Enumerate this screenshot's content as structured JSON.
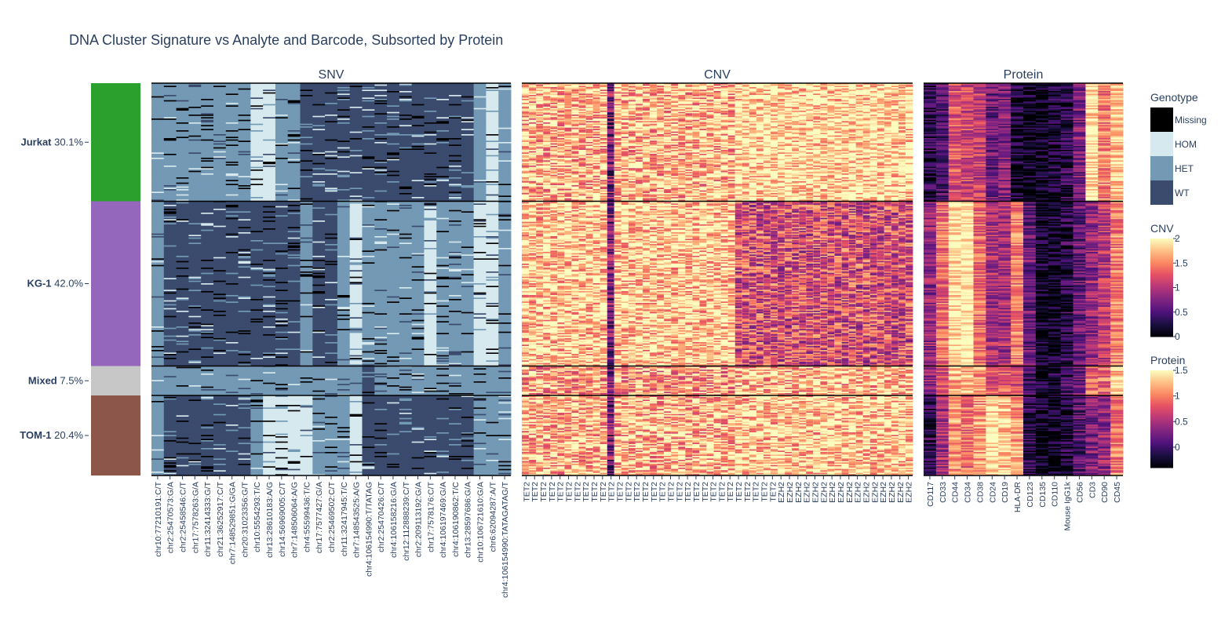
{
  "chart_data": {
    "type": "heatmap",
    "title": "DNA Cluster Signature vs Analyte and Barcode, Subsorted by Protein",
    "clusters": [
      {
        "name": "Jurkat",
        "percent": "30.1%",
        "color": "#2ca02c",
        "weight": 30.1
      },
      {
        "name": "KG-1",
        "percent": "42.0%",
        "color": "#9467bd",
        "weight": 42.0
      },
      {
        "name": "Mixed",
        "percent": "7.5%",
        "color": "#c7c7c7",
        "weight": 7.5
      },
      {
        "name": "TOM-1",
        "percent": "20.4%",
        "color": "#8c564b",
        "weight": 20.4
      }
    ],
    "panels": [
      {
        "title": "SNV",
        "colorscale": "genotype",
        "columns": [
          "chr10:77210191:C/T",
          "chr2:25470573:G/A",
          "chr2:25458546:C/T",
          "chr17:7578263:G/A",
          "chr11:32414333:G/T",
          "chr21:36252917:C/T",
          "chr7:148529851:G/GA",
          "chr20:31023356:G/T",
          "chr10:5554293:T/C",
          "chr13:28610183:A/G",
          "chr14:56969005:C/T",
          "chr7:148506064:A/G",
          "chr4:55599436:T/C",
          "chr17:7577427:G/A",
          "chr2:25469502:C/T",
          "chr11:32417945:T/C",
          "chr7:148543525:A/G",
          "chr4:106154990:T/TATAG",
          "chr2:25470426:C/T",
          "chr4:106158216:G/A",
          "chr12:112888239:C/T",
          "chr2:209113192:G/A",
          "chr17:7578176:C/T",
          "chr4:106197469:G/A",
          "chr4:106190862:T/C",
          "chr13:28597686:G/A",
          "chr10:106721610:G/A",
          "chr6:62094287:A/T",
          "chr4:106154990:TATAGATAG/T"
        ],
        "dominant_genotype_by_cluster": {
          "Jurkat": [
            "HET",
            "HET",
            "HET",
            "HET",
            "HET",
            "HET",
            "HET",
            "HET",
            "HOM",
            "HOM",
            "HET",
            "HET",
            "WT",
            "WT",
            "WT",
            "WT",
            "WT",
            "WT",
            "WT",
            "WT",
            "WT",
            "WT",
            "WT",
            "WT",
            "WT",
            "WT",
            "HET",
            "HOM",
            "HET"
          ],
          "KG-1": [
            "HET",
            "WT",
            "WT",
            "WT",
            "WT",
            "WT",
            "WT",
            "WT",
            "WT",
            "WT",
            "WT",
            "WT",
            "HET",
            "WT",
            "WT",
            "HET",
            "HOM",
            "HET",
            "HET",
            "HET",
            "HET",
            "HET",
            "HOM",
            "HET",
            "HET",
            "HET",
            "HOM",
            "HOM",
            "HET"
          ],
          "Mixed": [
            "HET",
            "HET",
            "HET",
            "HET",
            "HET",
            "HET",
            "HET",
            "HET",
            "HET",
            "HET",
            "HET",
            "HET",
            "HET",
            "HET",
            "HET",
            "HET",
            "HET",
            "WT",
            "HET",
            "HET",
            "HET",
            "HET",
            "HET",
            "HET",
            "HET",
            "HET",
            "HET",
            "HET",
            "HET"
          ],
          "TOM-1": [
            "HET",
            "WT",
            "WT",
            "WT",
            "WT",
            "WT",
            "WT",
            "WT",
            "HET",
            "HOM",
            "HOM",
            "HOM",
            "HOM",
            "HET",
            "HET",
            "HET",
            "HOM",
            "WT",
            "WT",
            "WT",
            "WT",
            "WT",
            "WT",
            "WT",
            "WT",
            "WT",
            "HET",
            "HET",
            "HET"
          ]
        }
      },
      {
        "title": "CNV",
        "colorscale": "CNV",
        "columns": [
          "TET2",
          "TET2",
          "TET2",
          "TET2",
          "TET2",
          "TET2",
          "TET2",
          "TET2",
          "TET2",
          "TET2",
          "TET2",
          "TET2",
          "TET2",
          "TET2",
          "TET2",
          "TET2",
          "TET2",
          "TET2",
          "TET2",
          "TET2",
          "TET2",
          "TET2",
          "TET2",
          "TET2",
          "TET2",
          "TET2",
          "TET2",
          "TET2",
          "TET2",
          "TET2",
          "EZH2",
          "EZH2",
          "EZH2",
          "EZH2",
          "EZH2",
          "EZH2",
          "EZH2",
          "EZH2",
          "EZH2",
          "EZH2",
          "EZH2",
          "EZH2",
          "EZH2",
          "EZH2",
          "EZH2",
          "EZH2",
          "EZH2",
          "EZH2",
          "EZH2",
          "EZH2",
          "EZH2",
          "EZH2",
          "EZH2",
          "EZH2",
          "EZH2"
        ],
        "visible_tick_labels": [
          "TET2",
          "TET2",
          "TET2",
          "TET2",
          "TET2",
          "TET2",
          "TET2",
          "TET2",
          "TET2",
          "TET2",
          "TET2",
          "TET2",
          "TET2",
          "TET2",
          "TET2",
          "TET2",
          "TET2",
          "TET2",
          "TET2",
          "TET2",
          "TET2",
          "TET2",
          "TET2",
          "TET2",
          "TET2",
          "TET2",
          "TET2",
          "TET2",
          "TET2",
          "TET2",
          "EZH2",
          "EZH2",
          "EZH2",
          "EZH2",
          "EZH2",
          "EZH2",
          "EZH2",
          "EZH2",
          "EZH2",
          "EZH2",
          "EZH2",
          "EZH2",
          "EZH2",
          "EZH2",
          "EZH2",
          "EZH2"
        ],
        "mean_by_cluster": {
          "Jurkat": {
            "TET2": 1.7,
            "EZH2": 1.9
          },
          "KG-1": {
            "TET2": 1.8,
            "EZH2": 1.2
          },
          "Mixed": {
            "TET2": 1.6,
            "EZH2": 1.7
          },
          "TOM-1": {
            "TET2": 1.7,
            "EZH2": 1.8
          }
        }
      },
      {
        "title": "Protein",
        "colorscale": "Protein",
        "columns": [
          "CD117",
          "CD33",
          "CD44",
          "CD34",
          "CD38",
          "CD24",
          "CD19",
          "HLA-DR",
          "CD123",
          "CD135",
          "CD110",
          "Mouse IgG1k",
          "CD56",
          "CD3",
          "CD90",
          "CD45"
        ],
        "mean_by_cluster": {
          "Jurkat": [
            -0.1,
            0.1,
            0.8,
            0.7,
            0.6,
            0.2,
            0.3,
            -0.2,
            -0.3,
            -0.3,
            -0.2,
            -0.1,
            0.3,
            1.4,
            1.0,
            1.3
          ],
          "KG-1": [
            0.4,
            0.9,
            1.4,
            1.5,
            0.9,
            0.5,
            0.5,
            1.0,
            0.2,
            -0.3,
            -0.3,
            -0.1,
            0.2,
            0.4,
            0.6,
            1.0
          ],
          "Mixed": [
            0.4,
            0.7,
            1.2,
            1.2,
            1.1,
            0.8,
            0.8,
            0.7,
            0.1,
            -0.2,
            -0.2,
            0.0,
            0.2,
            0.9,
            0.9,
            1.2
          ],
          "TOM-1": [
            -0.1,
            0.5,
            1.1,
            0.9,
            1.1,
            1.4,
            1.3,
            1.1,
            -0.1,
            -0.3,
            -0.3,
            -0.2,
            0.1,
            0.3,
            0.4,
            1.0
          ]
        }
      }
    ],
    "legend": {
      "genotype": {
        "title": "Genotype",
        "items": [
          {
            "label": "Missing",
            "color": "#000000"
          },
          {
            "label": "HOM",
            "color": "#d6e9ee"
          },
          {
            "label": "HET",
            "color": "#7399b5"
          },
          {
            "label": "WT",
            "color": "#3a4b6e"
          }
        ]
      },
      "cnv": {
        "title": "CNV",
        "range": [
          0,
          2
        ],
        "ticks": [
          "2",
          "1.5",
          "1",
          "0.5",
          "0"
        ]
      },
      "protein": {
        "title": "Protein",
        "range": [
          -0.4,
          1.5
        ],
        "ticks": [
          "1.5",
          "1",
          "0.5",
          "0"
        ]
      }
    }
  }
}
